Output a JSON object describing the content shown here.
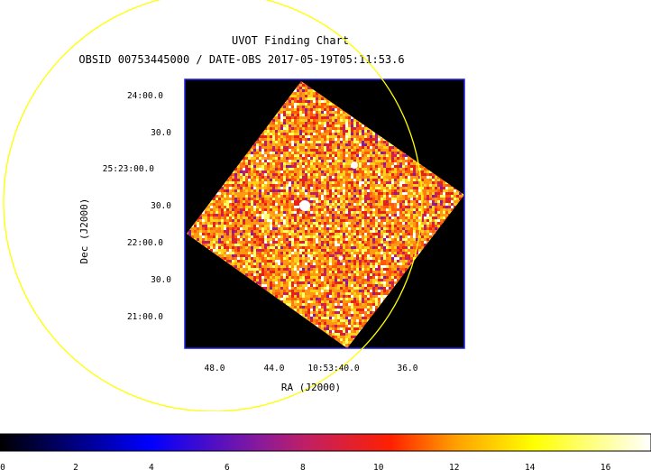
{
  "chart_data": {
    "type": "heatmap",
    "title": "UVOT Finding Chart",
    "subtitle": "OBSID 00753445000 / DATE-OBS 2017-05-19T05:11:53.6",
    "xlabel": "RA (J2000)",
    "ylabel": "Dec (J2000)",
    "x_ticks": [
      "48.0",
      "44.0",
      "10:53:40.0",
      "36.0"
    ],
    "y_ticks": [
      "24:00.0",
      "30.0",
      "25:23:00.0",
      "30.0",
      "22:00.0",
      "30.0",
      "21:00.0"
    ],
    "colorbar": {
      "ticks": [
        "0",
        "2",
        "4",
        "6",
        "8",
        "10",
        "12",
        "14",
        "16"
      ],
      "range": [
        0,
        17.2
      ],
      "colormap": "heat"
    },
    "overlay": {
      "shape": "circle",
      "color": "#ffff00"
    },
    "grid": false
  },
  "colors": {
    "frame": "#1e1ee6",
    "background": "#000000",
    "circle": "#ffff00"
  }
}
